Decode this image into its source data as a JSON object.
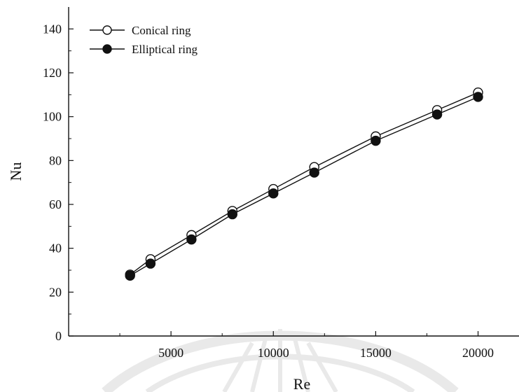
{
  "chart_data": {
    "type": "line",
    "xlabel": "Re",
    "ylabel": "Nu",
    "xlim": [
      0,
      22000
    ],
    "ylim": [
      0,
      150
    ],
    "xticks": [
      5000,
      10000,
      15000,
      20000
    ],
    "xticks_minor": [
      2500,
      7500,
      12500,
      17500
    ],
    "yticks": [
      0,
      20,
      40,
      60,
      80,
      100,
      120,
      140
    ],
    "grid": false,
    "legend_position": "top-left",
    "x": [
      3000,
      4000,
      6000,
      8000,
      10000,
      12000,
      15000,
      18000,
      20000
    ],
    "series": [
      {
        "name": "Conical ring",
        "marker": "open-circle",
        "values": [
          28,
          35,
          46,
          57,
          67,
          77,
          91,
          103,
          111
        ]
      },
      {
        "name": "Elliptical ring",
        "marker": "filled-circle",
        "values": [
          27.5,
          33,
          44,
          55.5,
          65,
          74.5,
          89,
          101,
          109
        ]
      }
    ]
  }
}
